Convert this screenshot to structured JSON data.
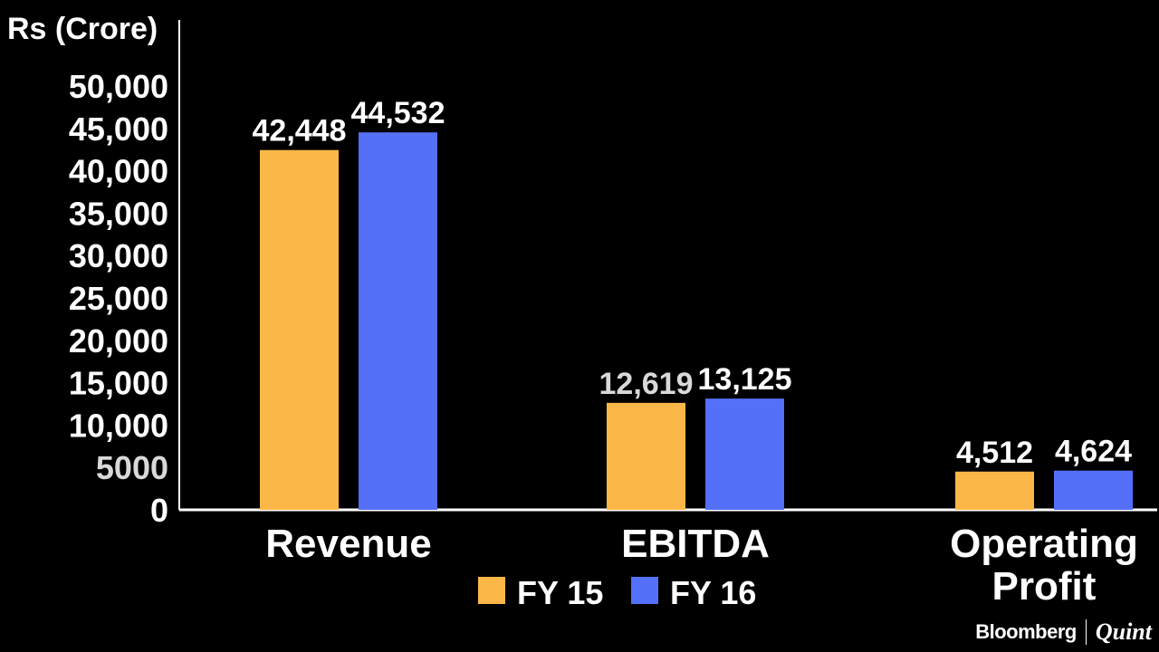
{
  "chart_data": {
    "type": "bar",
    "ylabel": "Rs (Crore)",
    "ylim": [
      0,
      50000
    ],
    "yticks": [
      "0",
      "5000",
      "10,000",
      "15,000",
      "20,000",
      "25,000",
      "30,000",
      "35,000",
      "40,000",
      "45,000",
      "50,000"
    ],
    "ytick_values": [
      0,
      5000,
      10000,
      15000,
      20000,
      25000,
      30000,
      35000,
      40000,
      45000,
      50000
    ],
    "categories": [
      "Revenue",
      "EBITDA",
      "Operating Profit"
    ],
    "category_lines": [
      [
        "Revenue"
      ],
      [
        "EBITDA"
      ],
      [
        "Operating",
        "Profit"
      ]
    ],
    "series": [
      {
        "name": "FY 15",
        "color": "#fbb848",
        "values": [
          42448,
          12619,
          4512
        ],
        "labels": [
          "42,448",
          "12,619",
          "4,512"
        ]
      },
      {
        "name": "FY 16",
        "color": "#5470f9",
        "values": [
          44532,
          13125,
          4624
        ],
        "labels": [
          "44,532",
          "13,125",
          "4,624"
        ]
      }
    ],
    "legend_position": "bottom-center",
    "grid": false
  },
  "colors": {
    "background": "#000000",
    "text": "#ffffff",
    "muted_text": "#d9d9d9"
  },
  "brand": {
    "name": "Bloomberg",
    "suffix": "Quint"
  }
}
